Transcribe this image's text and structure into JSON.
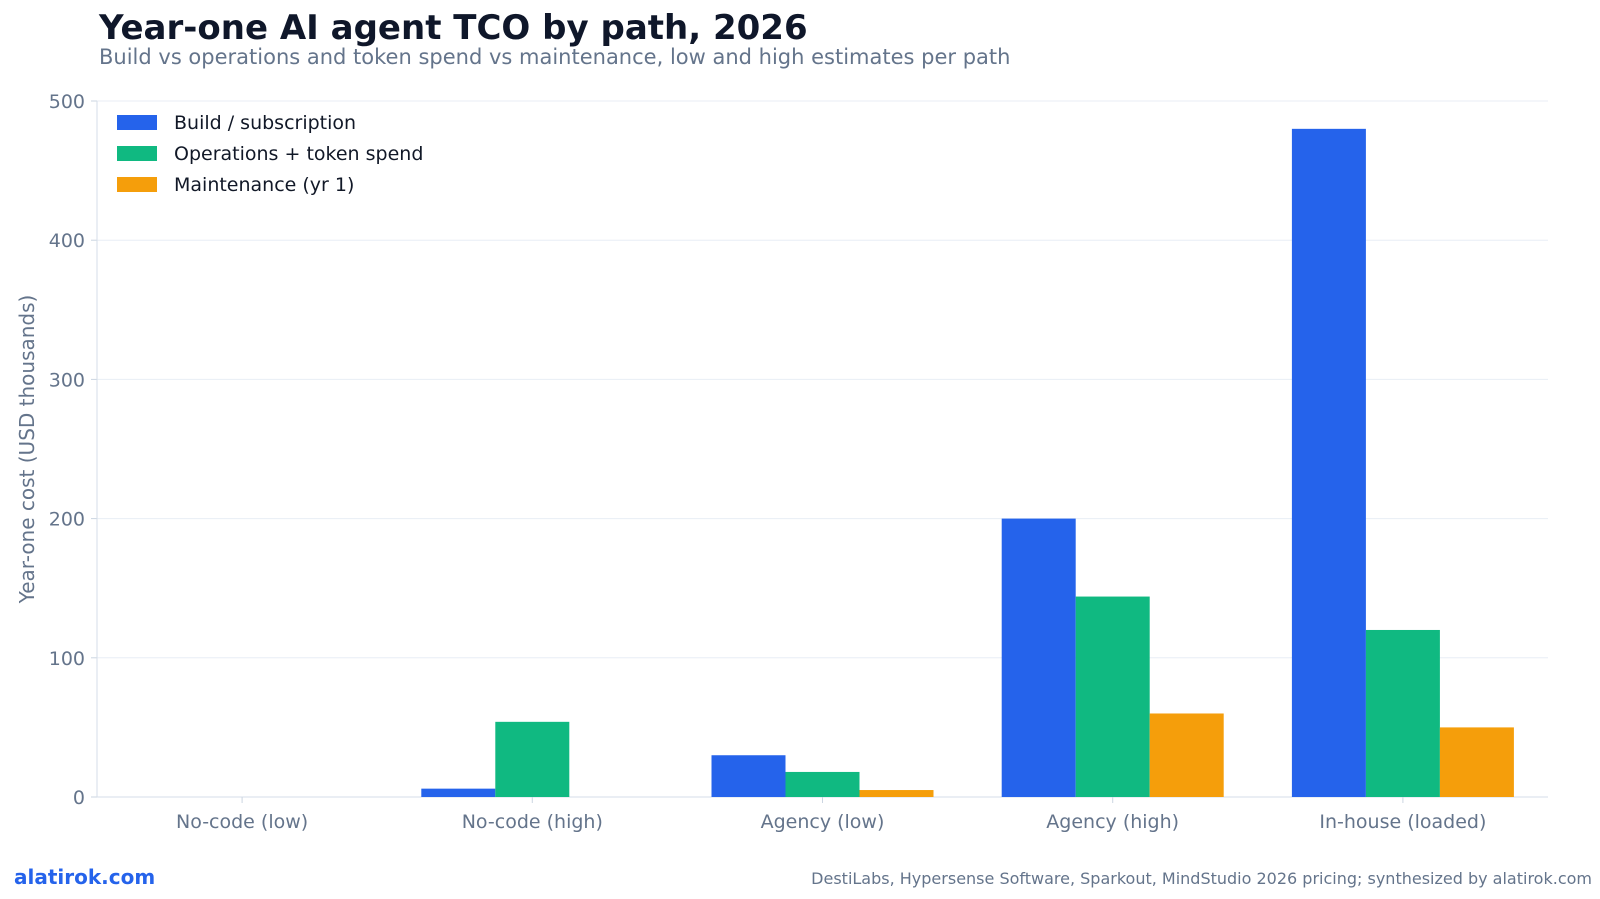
{
  "title": "Year-one AI agent TCO by path, 2026",
  "subtitle": "Build vs operations and token spend vs maintenance, low and high estimates per path",
  "footer": {
    "brand": "alatirok.com",
    "source": "DestiLabs, Hypersense Software, Sparkout, MindStudio 2026 pricing; synthesized by alatirok.com"
  },
  "chart_data": {
    "type": "bar",
    "title": "Year-one AI agent TCO by path, 2026",
    "xlabel": "",
    "ylabel": "Year-one cost (USD thousands)",
    "ylim": [
      0,
      500
    ],
    "yticks": [
      0,
      100,
      200,
      300,
      400,
      500
    ],
    "grid": true,
    "legend_position": "top-left",
    "categories": [
      "No-code (low)",
      "No-code (high)",
      "Agency (low)",
      "Agency (high)",
      "In-house (loaded)"
    ],
    "series": [
      {
        "name": "Build / subscription",
        "color": "#2563eb",
        "values": [
          0,
          6,
          30,
          200,
          480
        ]
      },
      {
        "name": "Operations + token spend",
        "color": "#10b981",
        "values": [
          0,
          54,
          18,
          144,
          120
        ]
      },
      {
        "name": "Maintenance (yr 1)",
        "color": "#f59e0b",
        "values": [
          0,
          0,
          5,
          60,
          50
        ]
      }
    ]
  }
}
